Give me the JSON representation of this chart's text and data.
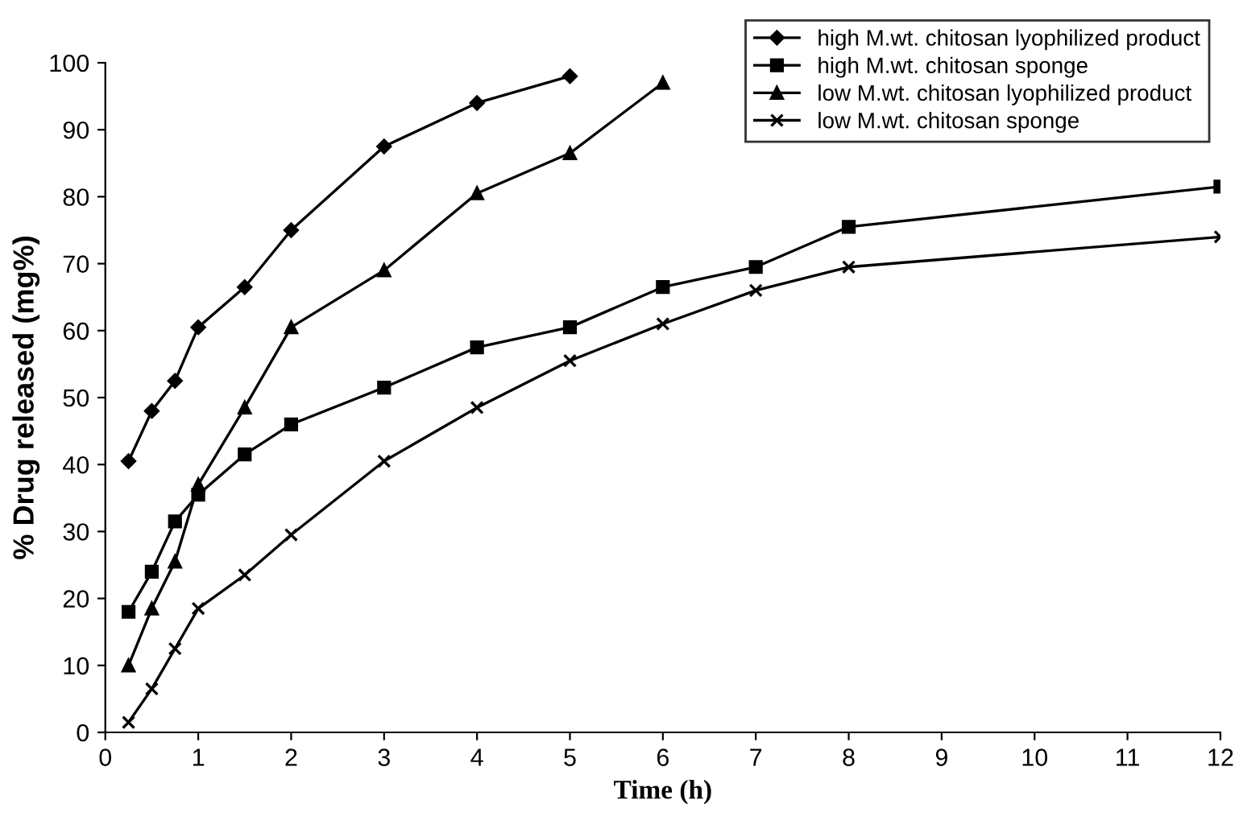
{
  "chart_data": {
    "type": "line",
    "xlabel": "Time (h)",
    "ylabel": "% Drug released (mg%)",
    "xlim": [
      0,
      12
    ],
    "xticks": [
      0,
      1,
      2,
      3,
      4,
      5,
      6,
      7,
      8,
      9,
      10,
      11,
      12
    ],
    "ylim": [
      0,
      100
    ],
    "yticks": [
      0,
      10,
      20,
      30,
      40,
      50,
      60,
      70,
      80,
      90,
      100
    ],
    "grid": false,
    "legend": "top right",
    "line_style": "solid",
    "series": [
      {
        "name": "high M.wt. chitosan lyophilized product",
        "color": "#000000",
        "marker": "diamond",
        "x": [
          0.25,
          0.5,
          0.75,
          1,
          1.5,
          2,
          3,
          4,
          5
        ],
        "values": [
          40.5,
          48,
          52.5,
          60.5,
          66.5,
          75,
          87.5,
          94,
          98
        ]
      },
      {
        "name": "high M.wt. chitosan sponge",
        "color": "#000000",
        "marker": "square",
        "x": [
          0.25,
          0.5,
          0.75,
          1,
          1.5,
          2,
          3,
          4,
          5,
          6,
          7,
          8,
          12
        ],
        "values": [
          18,
          24,
          31.5,
          35.5,
          41.5,
          46,
          51.5,
          57.5,
          60.5,
          66.5,
          69.5,
          75.5,
          81.5
        ]
      },
      {
        "name": "low M.wt. chitosan lyophilized product",
        "color": "#000000",
        "marker": "triangle",
        "x": [
          0.25,
          0.5,
          0.75,
          1,
          1.5,
          2,
          3,
          4,
          5,
          6
        ],
        "values": [
          10,
          18.5,
          25.5,
          37,
          48.5,
          60.5,
          69,
          80.5,
          86.5,
          97
        ]
      },
      {
        "name": "low M.wt. chitosan sponge",
        "color": "#000000",
        "marker": "cross",
        "x": [
          0.25,
          0.5,
          0.75,
          1,
          1.5,
          2,
          3,
          4,
          5,
          6,
          7,
          8,
          12
        ],
        "values": [
          1.5,
          6.5,
          12.5,
          18.5,
          23.5,
          29.5,
          40.5,
          48.5,
          55.5,
          61,
          66,
          69.5,
          74
        ]
      }
    ]
  }
}
